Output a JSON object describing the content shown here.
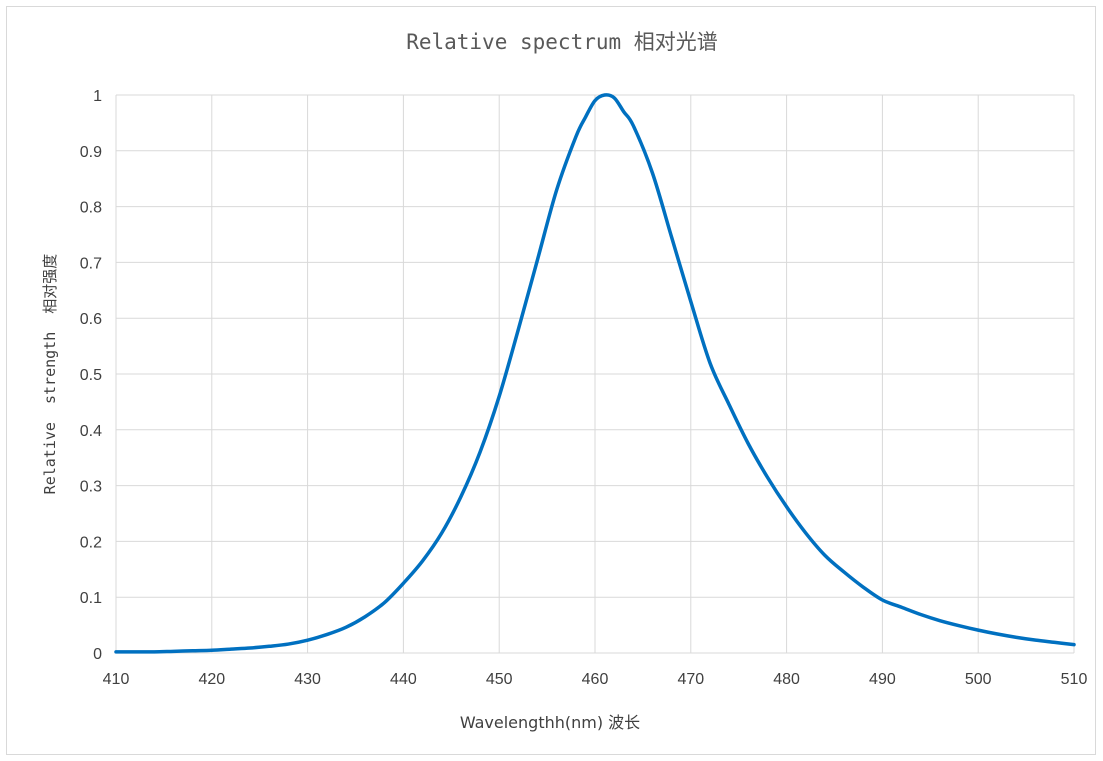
{
  "chart_data": {
    "type": "line",
    "title": "Relative spectrum 相对光谱",
    "xlabel": "Wavelengthh(nm) 波长",
    "ylabel": "Relative  strength  相对强度",
    "xlim": [
      410,
      510
    ],
    "ylim": [
      0,
      1
    ],
    "grid": true,
    "legend": "none",
    "x_ticks": [
      "410",
      "420",
      "430",
      "440",
      "450",
      "460",
      "470",
      "480",
      "490",
      "500",
      "510"
    ],
    "y_ticks": [
      "0",
      "0.1",
      "0.2",
      "0.3",
      "0.4",
      "0.5",
      "0.6",
      "0.7",
      "0.8",
      "0.9",
      "1"
    ],
    "series": [
      {
        "color": "#0070c0",
        "x": [
          410,
          412,
          414,
          416,
          418,
          420,
          422,
          424,
          426,
          428,
          430,
          432,
          434,
          436,
          438,
          440,
          442,
          444,
          446,
          448,
          450,
          452,
          454,
          456,
          458,
          459,
          460,
          461,
          462,
          463,
          464,
          466,
          468,
          470,
          472,
          474,
          476,
          478,
          480,
          482,
          484,
          486,
          488,
          490,
          492,
          494,
          496,
          498,
          500,
          502,
          504,
          506,
          508,
          510
        ],
        "y": [
          0.002,
          0.002,
          0.002,
          0.003,
          0.004,
          0.005,
          0.007,
          0.009,
          0.012,
          0.016,
          0.023,
          0.033,
          0.046,
          0.065,
          0.09,
          0.125,
          0.165,
          0.215,
          0.28,
          0.36,
          0.46,
          0.58,
          0.705,
          0.83,
          0.925,
          0.96,
          0.99,
          1.0,
          0.995,
          0.97,
          0.945,
          0.86,
          0.745,
          0.63,
          0.52,
          0.445,
          0.375,
          0.315,
          0.262,
          0.215,
          0.175,
          0.145,
          0.118,
          0.095,
          0.082,
          0.069,
          0.058,
          0.049,
          0.041,
          0.034,
          0.028,
          0.023,
          0.019,
          0.015
        ]
      }
    ]
  }
}
